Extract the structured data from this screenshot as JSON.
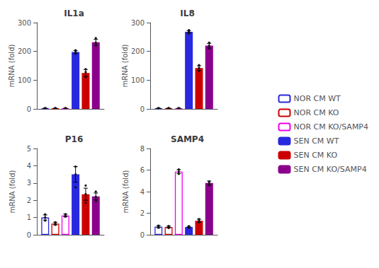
{
  "chart_data": [
    {
      "type": "bar",
      "title": "IL1a",
      "ylabel": "mRNA (fold)",
      "categories": [
        null
      ],
      "tick_labels": "y",
      "grid": false,
      "legend": "right",
      "ylim": [
        0,
        300
      ],
      "yticks": [
        0,
        100,
        200,
        300
      ],
      "series": [
        {
          "name": "NOR CM WT",
          "color": "#2828e0",
          "marker": "hollow",
          "values": [
            2
          ],
          "errors": [
            0.5
          ],
          "dots": [
            [
              1.5,
              2.0,
              2.5
            ]
          ]
        },
        {
          "name": "NOR CM KO",
          "color": "#cc0000",
          "marker": "hollow",
          "values": [
            2
          ],
          "errors": [
            0.5
          ],
          "dots": [
            [
              1.5,
              2.0,
              2.5
            ]
          ]
        },
        {
          "name": "NOR CM KO/SAMP4",
          "color": "#ee00ee",
          "marker": "hollow",
          "values": [
            2
          ],
          "errors": [
            0.5
          ],
          "dots": [
            [
              1.5,
              2.0,
              2.5
            ]
          ]
        },
        {
          "name": "SEN CM WT",
          "color": "#2828e0",
          "marker": "filled",
          "values": [
            198
          ],
          "errors": [
            5
          ],
          "dots": [
            [
              192,
              198,
              204
            ]
          ]
        },
        {
          "name": "SEN CM KO",
          "color": "#cc0000",
          "marker": "filled",
          "values": [
            125
          ],
          "errors": [
            12
          ],
          "dots": [
            [
              110,
              128,
              138
            ]
          ]
        },
        {
          "name": "SEN CM KO/SAMP4",
          "color": "#8b008b",
          "marker": "filled",
          "values": [
            232
          ],
          "errors": [
            10
          ],
          "dots": [
            [
              220,
              230,
              246
            ]
          ]
        }
      ]
    },
    {
      "type": "bar",
      "title": "IL8",
      "ylabel": "mRNA (fold)",
      "categories": [
        null
      ],
      "tick_labels": "y",
      "grid": false,
      "legend": "right",
      "ylim": [
        0,
        300
      ],
      "yticks": [
        0,
        100,
        200,
        300
      ],
      "series": [
        {
          "name": "NOR CM WT",
          "color": "#2828e0",
          "marker": "hollow",
          "values": [
            2
          ],
          "errors": [
            0.5
          ],
          "dots": [
            [
              1.5,
              2.0,
              2.5
            ]
          ]
        },
        {
          "name": "NOR CM KO",
          "color": "#cc0000",
          "marker": "hollow",
          "values": [
            2
          ],
          "errors": [
            0.5
          ],
          "dots": [
            [
              1.5,
              2.0,
              2.5
            ]
          ]
        },
        {
          "name": "NOR CM KO/SAMP4",
          "color": "#ee00ee",
          "marker": "hollow",
          "values": [
            2
          ],
          "errors": [
            0.5
          ],
          "dots": [
            [
              1.5,
              2.0,
              2.5
            ]
          ]
        },
        {
          "name": "SEN CM WT",
          "color": "#2828e0",
          "marker": "filled",
          "values": [
            268
          ],
          "errors": [
            4
          ],
          "dots": [
            [
              262,
              268,
              274
            ]
          ]
        },
        {
          "name": "SEN CM KO",
          "color": "#cc0000",
          "marker": "filled",
          "values": [
            142
          ],
          "errors": [
            8
          ],
          "dots": [
            [
              132,
              142,
              152
            ]
          ]
        },
        {
          "name": "SEN CM KO/SAMP4",
          "color": "#8b008b",
          "marker": "filled",
          "values": [
            220
          ],
          "errors": [
            8
          ],
          "dots": [
            [
              210,
              220,
              230
            ]
          ]
        }
      ]
    },
    {
      "type": "bar",
      "title": "P16",
      "ylabel": "mRNA (fold)",
      "categories": [
        null
      ],
      "tick_labels": "y",
      "grid": false,
      "legend": "right",
      "ylim": [
        0,
        5
      ],
      "yticks": [
        0,
        1,
        2,
        3,
        4,
        5
      ],
      "series": [
        {
          "name": "NOR CM WT",
          "color": "#2828e0",
          "marker": "hollow",
          "values": [
            1.0
          ],
          "errors": [
            0.15
          ],
          "dots": [
            [
              0.82,
              1.0,
              1.18
            ]
          ]
        },
        {
          "name": "NOR CM KO",
          "color": "#cc0000",
          "marker": "hollow",
          "values": [
            0.65
          ],
          "errors": [
            0.08
          ],
          "dots": [
            [
              0.58,
              0.65,
              0.72
            ]
          ]
        },
        {
          "name": "NOR CM KO/SAMP4",
          "color": "#ee00ee",
          "marker": "hollow",
          "values": [
            1.12
          ],
          "errors": [
            0.08
          ],
          "dots": [
            [
              1.05,
              1.12,
              1.19
            ]
          ]
        },
        {
          "name": "SEN CM WT",
          "color": "#2828e0",
          "marker": "filled",
          "values": [
            3.5
          ],
          "errors": [
            0.45
          ],
          "dots": [
            [
              2.75,
              3.5,
              3.95
            ]
          ]
        },
        {
          "name": "SEN CM KO",
          "color": "#cc0000",
          "marker": "filled",
          "values": [
            2.35
          ],
          "errors": [
            0.35
          ],
          "dots": [
            [
              1.85,
              2.35,
              2.85
            ]
          ]
        },
        {
          "name": "SEN CM KO/SAMP4",
          "color": "#8b008b",
          "marker": "filled",
          "values": [
            2.22
          ],
          "errors": [
            0.2
          ],
          "dots": [
            [
              1.95,
              2.2,
              2.5
            ]
          ]
        }
      ]
    },
    {
      "type": "bar",
      "title": "SAMP4",
      "ylabel": "mRNA (fold)",
      "categories": [
        null
      ],
      "tick_labels": "y",
      "grid": false,
      "legend": "right",
      "ylim": [
        0,
        8
      ],
      "yticks": [
        0,
        2,
        4,
        6,
        8
      ],
      "series": [
        {
          "name": "NOR CM WT",
          "color": "#2828e0",
          "marker": "hollow",
          "values": [
            0.75
          ],
          "errors": [
            0.1
          ],
          "dots": [
            [
              0.65,
              0.75,
              0.85
            ]
          ]
        },
        {
          "name": "NOR CM KO",
          "color": "#cc0000",
          "marker": "hollow",
          "values": [
            0.72
          ],
          "errors": [
            0.08
          ],
          "dots": [
            [
              0.63,
              0.72,
              0.81
            ]
          ]
        },
        {
          "name": "NOR CM KO/SAMP4",
          "color": "#ee00ee",
          "marker": "hollow",
          "values": [
            5.85
          ],
          "errors": [
            0.18
          ],
          "dots": [
            [
              5.65,
              5.85,
              6.05
            ]
          ]
        },
        {
          "name": "SEN CM WT",
          "color": "#2828e0",
          "marker": "filled",
          "values": [
            0.72
          ],
          "errors": [
            0.06
          ],
          "dots": [
            [
              0.65,
              0.72,
              0.79
            ]
          ]
        },
        {
          "name": "SEN CM KO",
          "color": "#cc0000",
          "marker": "filled",
          "values": [
            1.3
          ],
          "errors": [
            0.15
          ],
          "dots": [
            [
              1.15,
              1.3,
              1.45
            ]
          ]
        },
        {
          "name": "SEN CM KO/SAMP4",
          "color": "#8b008b",
          "marker": "filled",
          "values": [
            4.8
          ],
          "errors": [
            0.18
          ],
          "dots": [
            [
              4.6,
              4.8,
              4.95
            ]
          ]
        }
      ]
    }
  ]
}
